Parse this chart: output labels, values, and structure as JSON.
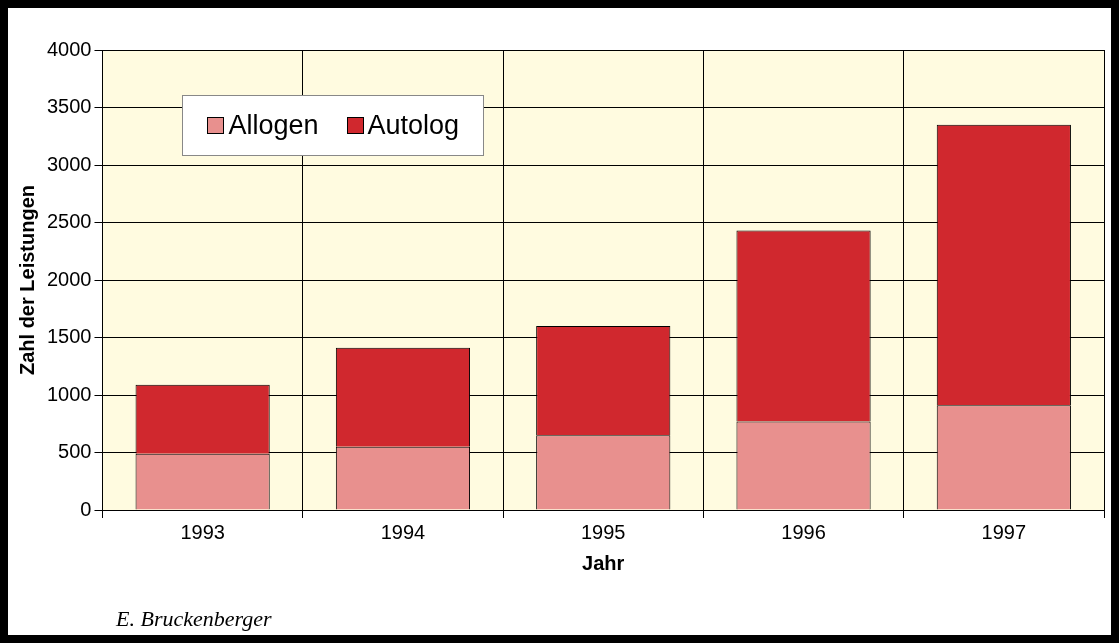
{
  "chart_data": {
    "type": "bar",
    "stacked": true,
    "xlabel": "Jahr",
    "ylabel": "Zahl der Leistungen",
    "categories": [
      "1993",
      "1994",
      "1995",
      "1996",
      "1997"
    ],
    "series": [
      {
        "name": "Allogen",
        "color": "#e8908e",
        "values": [
          490,
          550,
          650,
          770,
          910
        ]
      },
      {
        "name": "Autolog",
        "color": "#d0282e",
        "values": [
          600,
          860,
          950,
          1660,
          2440
        ]
      }
    ],
    "ylim": [
      0,
      4000
    ],
    "yticks": [
      0,
      500,
      1000,
      1500,
      2000,
      2500,
      3000,
      3500,
      4000
    ],
    "grid": true,
    "legend": "top left",
    "annotations": [
      "E. Bruckenberger"
    ]
  }
}
